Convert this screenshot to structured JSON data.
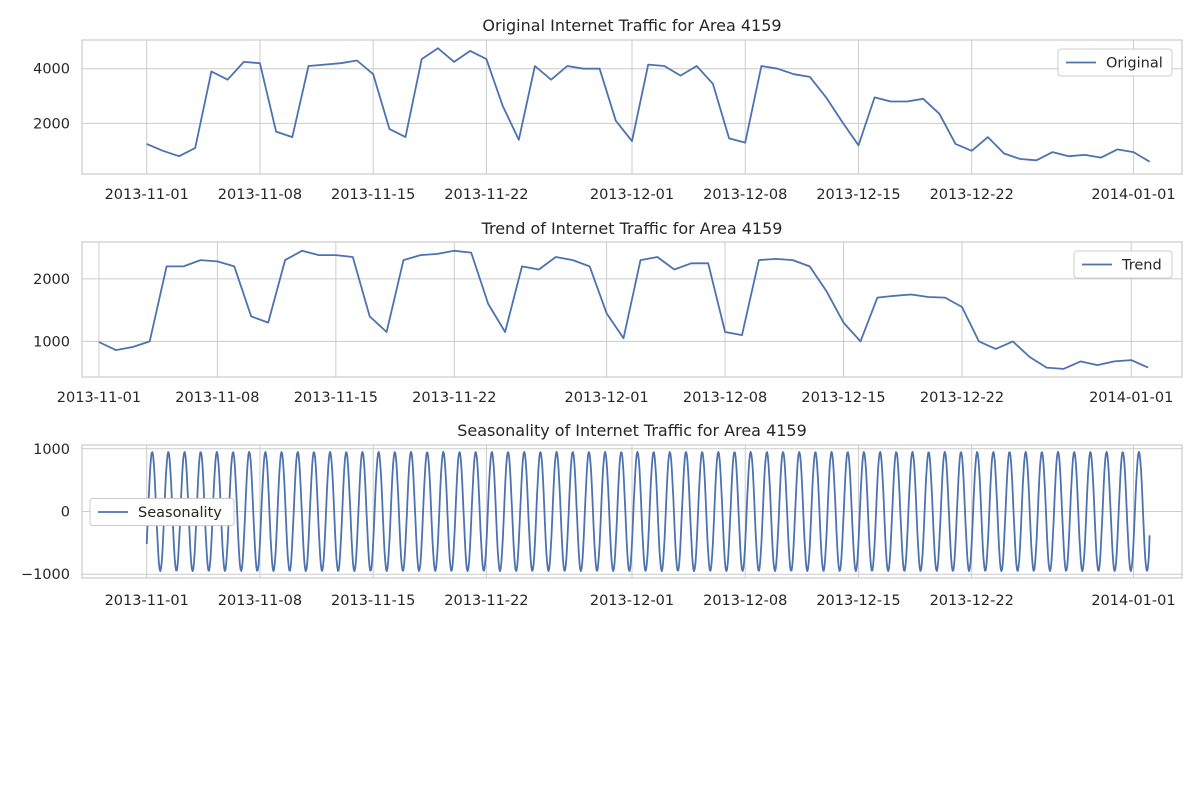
{
  "chart_data": [
    {
      "type": "line",
      "title": "Original Internet Traffic for Area 4159",
      "series": [
        {
          "name": "Original",
          "points": [
            [
              "2013-11-01",
              1250
            ],
            [
              "2013-11-02",
              1000
            ],
            [
              "2013-11-03",
              800
            ],
            [
              "2013-11-04",
              1100
            ],
            [
              "2013-11-05",
              3900
            ],
            [
              "2013-11-06",
              3600
            ],
            [
              "2013-11-07",
              4250
            ],
            [
              "2013-11-08",
              4200
            ],
            [
              "2013-11-09",
              1700
            ],
            [
              "2013-11-10",
              1500
            ],
            [
              "2013-11-11",
              4100
            ],
            [
              "2013-11-12",
              4150
            ],
            [
              "2013-11-13",
              4200
            ],
            [
              "2013-11-14",
              4300
            ],
            [
              "2013-11-15",
              3800
            ],
            [
              "2013-11-16",
              1800
            ],
            [
              "2013-11-17",
              1500
            ],
            [
              "2013-11-18",
              4350
            ],
            [
              "2013-11-19",
              4750
            ],
            [
              "2013-11-20",
              4250
            ],
            [
              "2013-11-21",
              4650
            ],
            [
              "2013-11-22",
              4350
            ],
            [
              "2013-11-23",
              2650
            ],
            [
              "2013-11-24",
              1400
            ],
            [
              "2013-11-25",
              4100
            ],
            [
              "2013-11-26",
              3600
            ],
            [
              "2013-11-27",
              4100
            ],
            [
              "2013-11-28",
              4000
            ],
            [
              "2013-11-29",
              4000
            ],
            [
              "2013-11-30",
              2100
            ],
            [
              "2013-12-01",
              1350
            ],
            [
              "2013-12-02",
              4150
            ],
            [
              "2013-12-03",
              4100
            ],
            [
              "2013-12-04",
              3750
            ],
            [
              "2013-12-05",
              4100
            ],
            [
              "2013-12-06",
              3450
            ],
            [
              "2013-12-07",
              1450
            ],
            [
              "2013-12-08",
              1300
            ],
            [
              "2013-12-09",
              4100
            ],
            [
              "2013-12-10",
              4000
            ],
            [
              "2013-12-11",
              3800
            ],
            [
              "2013-12-12",
              3700
            ],
            [
              "2013-12-13",
              2950
            ],
            [
              "2013-12-14",
              2050
            ],
            [
              "2013-12-15",
              1200
            ],
            [
              "2013-12-16",
              2950
            ],
            [
              "2013-12-17",
              2800
            ],
            [
              "2013-12-18",
              2800
            ],
            [
              "2013-12-19",
              2900
            ],
            [
              "2013-12-20",
              2350
            ],
            [
              "2013-12-21",
              1250
            ],
            [
              "2013-12-22",
              1000
            ],
            [
              "2013-12-23",
              1500
            ],
            [
              "2013-12-24",
              900
            ],
            [
              "2013-12-25",
              700
            ],
            [
              "2013-12-26",
              650
            ],
            [
              "2013-12-27",
              950
            ],
            [
              "2013-12-28",
              800
            ],
            [
              "2013-12-29",
              850
            ],
            [
              "2013-12-30",
              750
            ],
            [
              "2013-12-31",
              1050
            ],
            [
              "2014-01-01",
              950
            ],
            [
              "2014-01-02",
              600
            ]
          ]
        }
      ],
      "legend": "upper-right",
      "grid": true,
      "xlim": [
        "2013-10-28",
        "2014-01-04"
      ],
      "ylim": [
        150,
        5050
      ],
      "xticks": [
        "2013-11-01",
        "2013-11-08",
        "2013-11-15",
        "2013-11-22",
        "2013-12-01",
        "2013-12-08",
        "2013-12-15",
        "2013-12-22",
        "2014-01-01"
      ],
      "yticks": [
        2000,
        4000
      ],
      "ytick_labels": [
        "2000",
        "4000"
      ]
    },
    {
      "type": "line",
      "title": "Trend of Internet Traffic for Area 4159",
      "series": [
        {
          "name": "Trend",
          "points": [
            [
              "2013-11-01",
              990
            ],
            [
              "2013-11-02",
              860
            ],
            [
              "2013-11-03",
              910
            ],
            [
              "2013-11-04",
              1000
            ],
            [
              "2013-11-05",
              2200
            ],
            [
              "2013-11-06",
              2200
            ],
            [
              "2013-11-07",
              2300
            ],
            [
              "2013-11-08",
              2280
            ],
            [
              "2013-11-09",
              2200
            ],
            [
              "2013-11-10",
              1400
            ],
            [
              "2013-11-11",
              1300
            ],
            [
              "2013-11-12",
              2300
            ],
            [
              "2013-11-13",
              2450
            ],
            [
              "2013-11-14",
              2380
            ],
            [
              "2013-11-15",
              2380
            ],
            [
              "2013-11-16",
              2350
            ],
            [
              "2013-11-17",
              1400
            ],
            [
              "2013-11-18",
              1150
            ],
            [
              "2013-11-19",
              2300
            ],
            [
              "2013-11-20",
              2380
            ],
            [
              "2013-11-21",
              2400
            ],
            [
              "2013-11-22",
              2450
            ],
            [
              "2013-11-23",
              2420
            ],
            [
              "2013-11-24",
              1600
            ],
            [
              "2013-11-25",
              1150
            ],
            [
              "2013-11-26",
              2200
            ],
            [
              "2013-11-27",
              2150
            ],
            [
              "2013-11-28",
              2350
            ],
            [
              "2013-11-29",
              2300
            ],
            [
              "2013-11-30",
              2200
            ],
            [
              "2013-12-01",
              1450
            ],
            [
              "2013-12-02",
              1050
            ],
            [
              "2013-12-03",
              2300
            ],
            [
              "2013-12-04",
              2350
            ],
            [
              "2013-12-05",
              2150
            ],
            [
              "2013-12-06",
              2250
            ],
            [
              "2013-12-07",
              2250
            ],
            [
              "2013-12-08",
              1150
            ],
            [
              "2013-12-09",
              1100
            ],
            [
              "2013-12-10",
              2300
            ],
            [
              "2013-12-11",
              2320
            ],
            [
              "2013-12-12",
              2300
            ],
            [
              "2013-12-13",
              2200
            ],
            [
              "2013-12-14",
              1800
            ],
            [
              "2013-12-15",
              1300
            ],
            [
              "2013-12-16",
              1000
            ],
            [
              "2013-12-17",
              1700
            ],
            [
              "2013-12-18",
              1730
            ],
            [
              "2013-12-19",
              1750
            ],
            [
              "2013-12-20",
              1710
            ],
            [
              "2013-12-21",
              1700
            ],
            [
              "2013-12-22",
              1550
            ],
            [
              "2013-12-23",
              1000
            ],
            [
              "2013-12-24",
              880
            ],
            [
              "2013-12-25",
              1000
            ],
            [
              "2013-12-26",
              750
            ],
            [
              "2013-12-27",
              580
            ],
            [
              "2013-12-28",
              560
            ],
            [
              "2013-12-29",
              680
            ],
            [
              "2013-12-30",
              620
            ],
            [
              "2013-12-31",
              680
            ],
            [
              "2014-01-01",
              700
            ],
            [
              "2014-01-02",
              580
            ]
          ]
        }
      ],
      "legend": "upper-right",
      "grid": true,
      "xlim": [
        "2013-10-31",
        "2014-01-04"
      ],
      "ylim": [
        430,
        2590
      ],
      "xticks": [
        "2013-11-01",
        "2013-11-08",
        "2013-11-15",
        "2013-11-22",
        "2013-12-01",
        "2013-12-08",
        "2013-12-15",
        "2013-12-22",
        "2014-01-01"
      ],
      "yticks": [
        1000,
        2000
      ],
      "ytick_labels": [
        "1000",
        "2000"
      ]
    },
    {
      "type": "line",
      "title": "Seasonality of Internet Traffic for Area 4159",
      "series": [
        {
          "name": "Seasonality",
          "period_days": 1,
          "amplitude": 950,
          "x_start": "2013-11-01",
          "x_end": "2014-01-02",
          "first_value": -520,
          "last_value": -380
        }
      ],
      "legend": "center-left",
      "grid": true,
      "xlim": [
        "2013-10-28",
        "2014-01-04"
      ],
      "ylim": [
        -1060,
        1060
      ],
      "xticks": [
        "2013-11-01",
        "2013-11-08",
        "2013-11-15",
        "2013-11-22",
        "2013-12-01",
        "2013-12-08",
        "2013-12-15",
        "2013-12-22",
        "2014-01-01"
      ],
      "yticks": [
        -1000,
        0,
        1000
      ],
      "ytick_labels": [
        "−1000",
        "0",
        "1000"
      ]
    }
  ]
}
